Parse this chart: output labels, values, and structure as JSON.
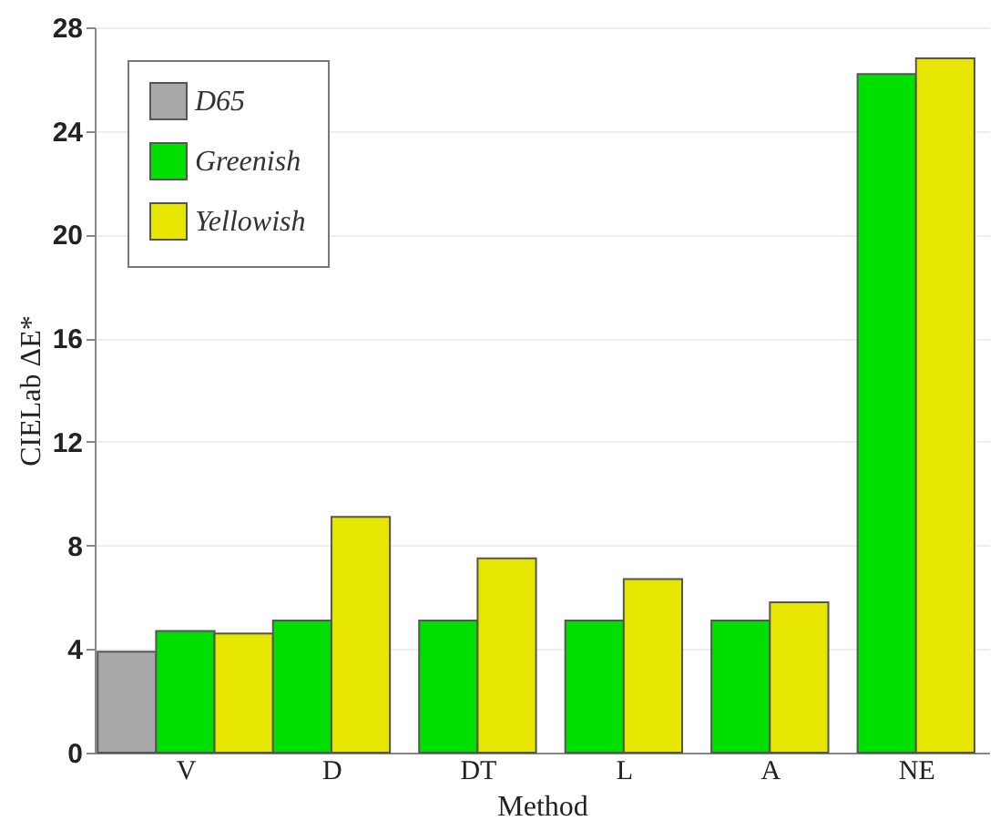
{
  "chart_data": {
    "type": "bar",
    "xlabel": "Method",
    "ylabel": "CIELab ΔE*",
    "categories": [
      "V",
      "D",
      "DT",
      "L",
      "A",
      "NE"
    ],
    "series": [
      {
        "name": "D65",
        "color": "#a9a9a9",
        "values": [
          3.9,
          null,
          null,
          null,
          null,
          null
        ]
      },
      {
        "name": "Greenish",
        "color": "#00e000",
        "values": [
          4.7,
          5.1,
          5.1,
          5.1,
          5.1,
          26.2
        ]
      },
      {
        "name": "Yellowish",
        "color": "#e6e600",
        "values": [
          4.6,
          9.1,
          7.5,
          6.7,
          5.8,
          26.8
        ]
      }
    ],
    "ylim": [
      0,
      28
    ],
    "yticks": [
      0,
      4,
      8,
      12,
      16,
      20,
      24,
      28
    ],
    "grid": "y",
    "legend": "top left"
  }
}
